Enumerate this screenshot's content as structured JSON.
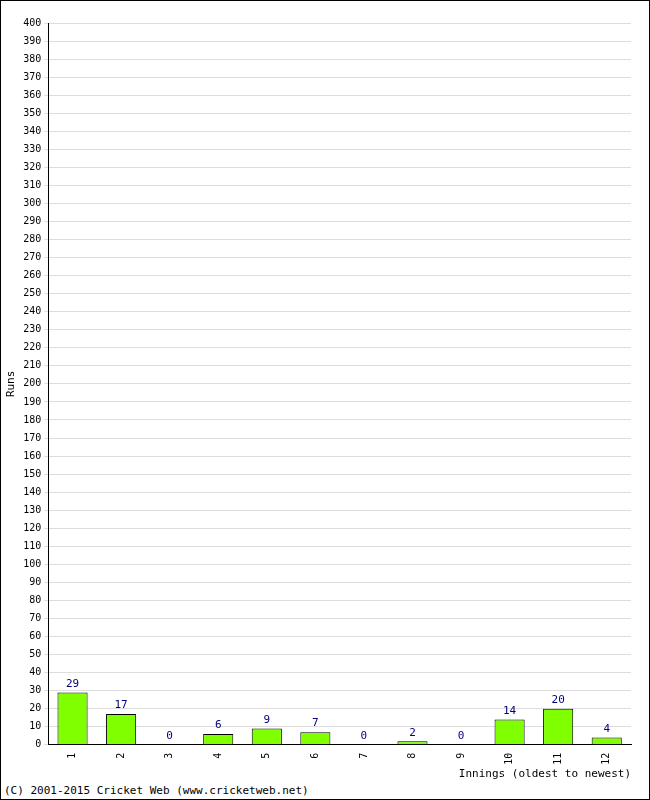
{
  "chart_data": {
    "type": "bar",
    "x_label": "Innings (oldest to newest)",
    "y_label": "Runs",
    "categories": [
      "1",
      "2",
      "3",
      "4",
      "5",
      "6",
      "7",
      "8",
      "9",
      "10",
      "11",
      "12"
    ],
    "values": [
      29,
      17,
      0,
      6,
      9,
      7,
      0,
      2,
      0,
      14,
      20,
      4
    ],
    "color": "#80ff00",
    "ylim": [
      0,
      400
    ],
    "yticks": [
      0,
      10,
      20,
      30,
      40,
      50,
      60,
      70,
      80,
      90,
      100,
      110,
      120,
      130,
      140,
      150,
      160,
      170,
      180,
      190,
      200,
      210,
      220,
      230,
      240,
      250,
      260,
      270,
      280,
      290,
      300,
      310,
      320,
      330,
      340,
      350,
      360,
      370,
      380,
      390,
      400
    ],
    "grid": true,
    "data_labels": true,
    "annotations": [
      "(C) 2001-2015 Cricket Web (www.cricketweb.net)"
    ]
  }
}
